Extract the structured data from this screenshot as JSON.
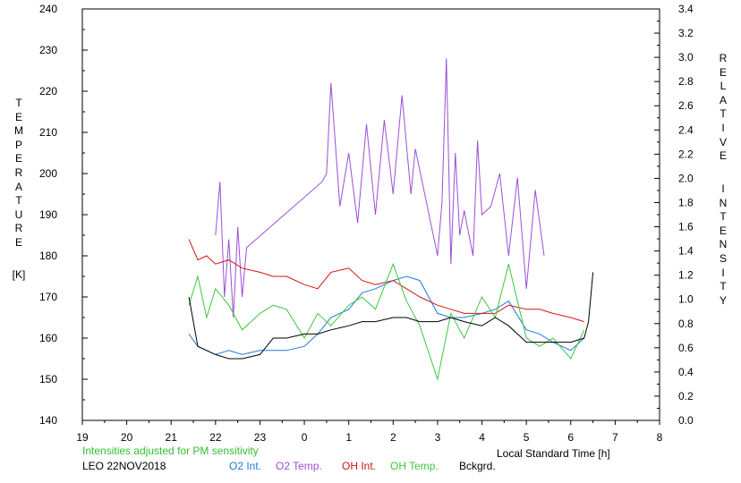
{
  "chart_data": {
    "type": "line",
    "left_axis_label_letters": [
      "T",
      "E",
      "M",
      "P",
      "E",
      "R",
      "A",
      "T",
      "U",
      "R",
      "E"
    ],
    "left_axis_unit": "[K]",
    "right_axis_label_letters": [
      "R",
      "E",
      "L",
      "A",
      "T",
      "I",
      "V",
      "E"
    ],
    "right_axis_label_letters_2": [
      "I",
      "N",
      "T",
      "E",
      "N",
      "S",
      "I",
      "T",
      "Y"
    ],
    "xlabel": "Local Standard Time [h]",
    "xlim": [
      19,
      32
    ],
    "x_tick_labels": [
      "19",
      "20",
      "21",
      "22",
      "23",
      "0",
      "1",
      "2",
      "3",
      "4",
      "5",
      "6",
      "7",
      "8"
    ],
    "ylim_left": [
      140,
      240
    ],
    "y_left_tick_labels": [
      "140",
      "150",
      "160",
      "170",
      "180",
      "190",
      "200",
      "210",
      "220",
      "230",
      "240"
    ],
    "ylim_right": [
      0.0,
      3.4
    ],
    "y_right_tick_labels": [
      "0.0",
      "0.2",
      "0.4",
      "0.6",
      "0.8",
      "1.0",
      "1.2",
      "1.4",
      "1.6",
      "1.8",
      "2.0",
      "2.2",
      "2.4",
      "2.6",
      "2.8",
      "3.0",
      "3.2",
      "3.4"
    ],
    "note": "Intensities adjusted for PM sensitivity",
    "station": "LEO 22NOV2018",
    "grid": false,
    "legend_position": "bottom",
    "series": [
      {
        "name": "O2 Int.",
        "axis": "left",
        "color": "#1f7bd6",
        "x": [
          21.4,
          21.6,
          21.8,
          22.0,
          22.3,
          22.6,
          23.0,
          23.3,
          23.6,
          24.0,
          24.3,
          24.6,
          25.0,
          25.3,
          25.6,
          26.0,
          26.3,
          26.6,
          27.0,
          27.3,
          27.6,
          28.0,
          28.3,
          28.6,
          29.0,
          29.3,
          29.6,
          30.0,
          30.3
        ],
        "y": [
          161,
          158,
          157,
          156,
          157,
          156,
          157,
          157,
          157,
          158,
          161,
          165,
          167,
          171,
          172,
          174,
          175,
          174,
          166,
          165,
          165,
          166,
          167,
          169,
          162,
          161,
          159,
          157,
          160
        ]
      },
      {
        "name": "O2 Temp.",
        "axis": "left",
        "color": "#9b4fd6",
        "x": [
          22.0,
          22.1,
          22.2,
          22.3,
          22.4,
          22.5,
          22.6,
          22.7,
          24.4,
          24.5,
          24.6,
          24.8,
          25.0,
          25.2,
          25.4,
          25.6,
          25.8,
          26.0,
          26.2,
          26.4,
          26.5,
          27.0,
          27.1,
          27.2,
          27.3,
          27.4,
          27.5,
          27.6,
          27.8,
          27.9,
          28.0,
          28.2,
          28.4,
          28.6,
          28.8,
          29.0,
          29.2,
          29.4
        ],
        "y": [
          185,
          198,
          170,
          184,
          165,
          187,
          170,
          182,
          198,
          200,
          222,
          192,
          205,
          188,
          212,
          190,
          213,
          195,
          219,
          195,
          206,
          180,
          193,
          228,
          178,
          205,
          185,
          191,
          180,
          208,
          190,
          192,
          200,
          180,
          199,
          172,
          196,
          180
        ]
      },
      {
        "name": "OH Int.",
        "axis": "left",
        "color": "#d21414",
        "x": [
          21.4,
          21.6,
          21.8,
          22.0,
          22.3,
          22.6,
          23.0,
          23.3,
          23.6,
          24.0,
          24.3,
          24.6,
          25.0,
          25.3,
          25.6,
          26.0,
          26.3,
          26.6,
          27.0,
          27.3,
          27.6,
          28.0,
          28.3,
          28.6,
          29.0,
          29.3,
          29.6,
          30.0,
          30.3
        ],
        "y": [
          184,
          179,
          180,
          178,
          179,
          177,
          176,
          175,
          175,
          173,
          172,
          176,
          177,
          174,
          173,
          174,
          172,
          170,
          168,
          167,
          166,
          166,
          166,
          168,
          167,
          167,
          166,
          165,
          164
        ]
      },
      {
        "name": "OH Temp.",
        "axis": "left",
        "color": "#3ec63e",
        "x": [
          21.4,
          21.6,
          21.8,
          22.0,
          22.3,
          22.6,
          23.0,
          23.3,
          23.6,
          24.0,
          24.3,
          24.6,
          25.0,
          25.3,
          25.6,
          26.0,
          26.3,
          26.6,
          27.0,
          27.3,
          27.6,
          28.0,
          28.3,
          28.6,
          29.0,
          29.3,
          29.6,
          30.0,
          30.3
        ],
        "y": [
          168,
          175,
          165,
          172,
          168,
          162,
          166,
          168,
          167,
          160,
          166,
          163,
          168,
          170,
          167,
          178,
          169,
          163,
          150,
          166,
          160,
          170,
          165,
          178,
          160,
          158,
          160,
          155,
          162
        ]
      },
      {
        "name": "Bckgrd.",
        "axis": "left",
        "color": "#000000",
        "x": [
          21.4,
          21.6,
          21.8,
          22.0,
          22.3,
          22.6,
          23.0,
          23.3,
          23.6,
          24.0,
          24.3,
          24.6,
          25.0,
          25.3,
          25.6,
          26.0,
          26.3,
          26.6,
          27.0,
          27.3,
          27.6,
          28.0,
          28.3,
          28.6,
          29.0,
          29.3,
          29.6,
          30.0,
          30.3,
          30.4,
          30.5
        ],
        "y": [
          170,
          158,
          157,
          156,
          155,
          155,
          156,
          160,
          160,
          161,
          161,
          162,
          163,
          164,
          164,
          165,
          165,
          164,
          164,
          165,
          164,
          163,
          165,
          163,
          159,
          159,
          159,
          159,
          160,
          164,
          176
        ]
      }
    ]
  }
}
